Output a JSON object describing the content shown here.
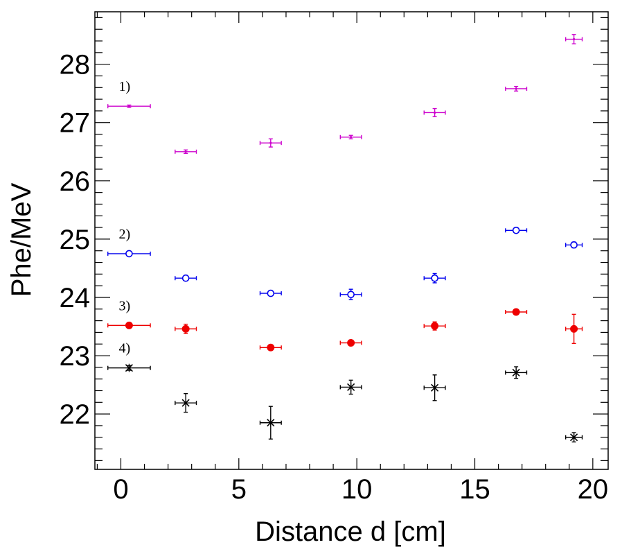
{
  "chart_data": {
    "type": "scatter",
    "title": "",
    "xlabel": "Distance d [cm]",
    "ylabel": "Phe/MeV",
    "xlim": [
      -1.1,
      20.65
    ],
    "ylim": [
      21.05,
      28.9
    ],
    "xticks": [
      0,
      5,
      10,
      15,
      20
    ],
    "yticks": [
      22,
      23,
      24,
      25,
      26,
      27,
      28
    ],
    "grid": false,
    "legend": "none",
    "series": [
      {
        "name": "1)",
        "color": "#cc00cc",
        "marker": "dot",
        "x": [
          0.35,
          2.75,
          6.35,
          9.75,
          13.3,
          16.75,
          19.2
        ],
        "y": [
          27.28,
          26.5,
          26.65,
          26.75,
          27.17,
          27.58,
          28.43
        ],
        "xerr": [
          0.9,
          0.45,
          0.45,
          0.45,
          0.45,
          0.45,
          0.35
        ],
        "yerr": [
          0.02,
          0.03,
          0.07,
          0.03,
          0.07,
          0.04,
          0.08
        ]
      },
      {
        "name": "2)",
        "color": "#0000ee",
        "marker": "open-circle",
        "x": [
          0.35,
          2.75,
          6.35,
          9.75,
          13.3,
          16.75,
          19.2
        ],
        "y": [
          24.75,
          24.33,
          24.07,
          24.05,
          24.33,
          25.15,
          24.9
        ],
        "xerr": [
          0.9,
          0.45,
          0.45,
          0.45,
          0.45,
          0.45,
          0.35
        ],
        "yerr": [
          0.02,
          0.03,
          0.04,
          0.09,
          0.08,
          0.03,
          0.05
        ]
      },
      {
        "name": "3)",
        "color": "#ee0000",
        "marker": "filled-circle",
        "x": [
          0.35,
          2.75,
          6.35,
          9.75,
          13.3,
          16.75,
          19.2
        ],
        "y": [
          23.52,
          23.46,
          23.14,
          23.22,
          23.51,
          23.75,
          23.46
        ],
        "xerr": [
          0.9,
          0.45,
          0.45,
          0.45,
          0.45,
          0.45,
          0.35
        ],
        "yerr": [
          0.04,
          0.08,
          0.03,
          0.03,
          0.07,
          0.03,
          0.25
        ]
      },
      {
        "name": "4)",
        "color": "#000000",
        "marker": "star",
        "x": [
          0.35,
          2.75,
          6.35,
          9.75,
          13.3,
          16.75,
          19.2
        ],
        "y": [
          22.79,
          22.19,
          21.85,
          22.46,
          22.45,
          22.71,
          21.6
        ],
        "xerr": [
          0.9,
          0.45,
          0.45,
          0.45,
          0.45,
          0.45,
          0.35
        ],
        "yerr": [
          0.04,
          0.16,
          0.28,
          0.12,
          0.22,
          0.1,
          0.08
        ]
      }
    ]
  }
}
